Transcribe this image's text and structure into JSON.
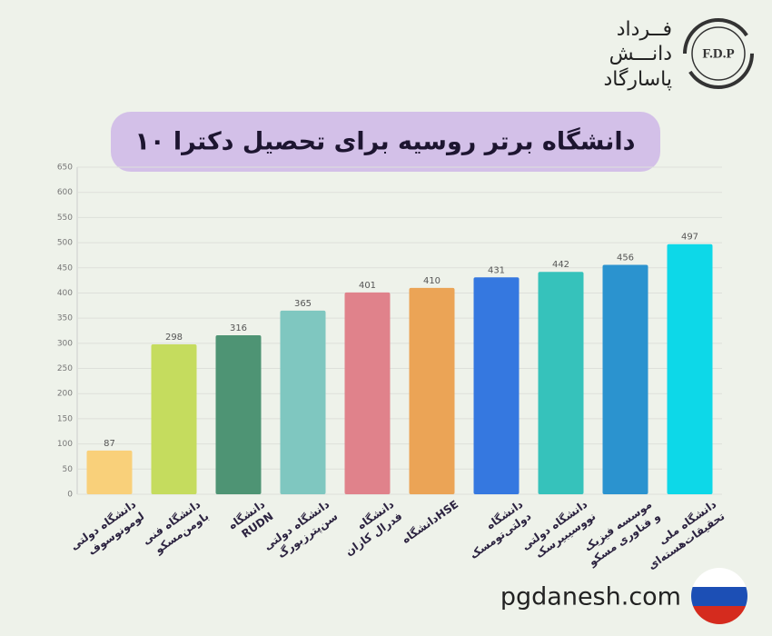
{
  "brand": {
    "lines": [
      "فــرداد",
      "دانـــش",
      "پاسارگاد"
    ],
    "logo": "F.D.P"
  },
  "footer": "pgdanesh.com",
  "chart_data": {
    "type": "bar",
    "title": "۱۰ دانشگاه برتر روسیه برای تحصیل دکترا",
    "categories": [
      [
        "دانشگاه دولتی",
        "لومونوسوف"
      ],
      [
        "دانشگاه فنی",
        "باومن‌مسکو"
      ],
      [
        "دانشگاه",
        "RUDN"
      ],
      [
        "دانشگاه دولتی",
        "سن‌پترزبورگ"
      ],
      [
        "دانشگاه",
        "فدرال کازان"
      ],
      [
        "دانشگاهHSE"
      ],
      [
        "دانشگاه",
        "دولتی‌تومسک"
      ],
      [
        "دانشگاه دولتی",
        "نووسیبیرسک"
      ],
      [
        "موسسه فیزیک",
        "و فناوری مسکو"
      ],
      [
        "دانشگاه ملی",
        "تحقیقات‌هسته‌ای"
      ]
    ],
    "values": [
      87,
      298,
      316,
      365,
      401,
      410,
      431,
      442,
      456,
      497
    ],
    "colors": [
      "#f9d07a",
      "#c5dc5e",
      "#4e9474",
      "#7fc7c0",
      "#e0828b",
      "#eba456",
      "#3578e0",
      "#36c2bb",
      "#2b93cf",
      "#0dd8e8"
    ],
    "ylim": [
      0,
      650
    ],
    "yticks": [
      0,
      50,
      100,
      150,
      200,
      250,
      300,
      350,
      400,
      450,
      500,
      550,
      600,
      650
    ],
    "grid": true
  }
}
